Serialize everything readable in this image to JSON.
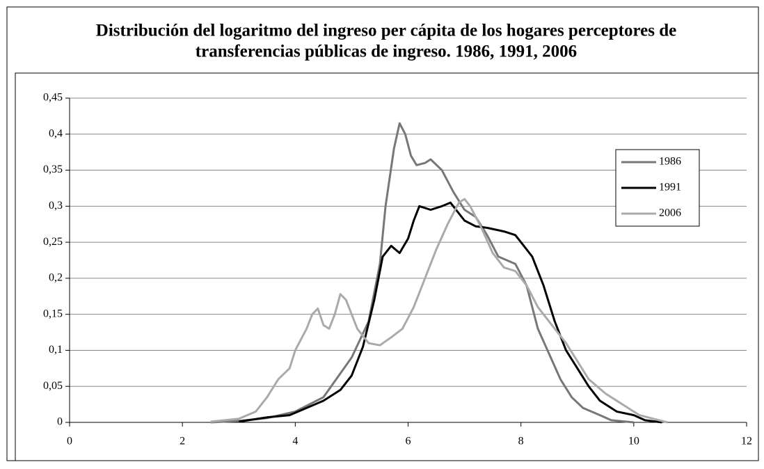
{
  "chart_data": {
    "type": "line",
    "title": [
      "Distribución del logaritmo del ingreso per cápita de los hogares perceptores de",
      "transferencias públicas de ingreso. 1986, 1991, 2006"
    ],
    "xlim": [
      0,
      12
    ],
    "xticks": [
      0,
      2,
      4,
      6,
      8,
      10,
      12
    ],
    "ylim": [
      0,
      0.45
    ],
    "yticks": [
      {
        "value": 0,
        "label": "0"
      },
      {
        "value": 0.05,
        "label": "0,05"
      },
      {
        "value": 0.1,
        "label": "0,1"
      },
      {
        "value": 0.15,
        "label": "0,15"
      },
      {
        "value": 0.2,
        "label": "0,2"
      },
      {
        "value": 0.25,
        "label": "0,25"
      },
      {
        "value": 0.3,
        "label": "0,3"
      },
      {
        "value": 0.35,
        "label": "0,35"
      },
      {
        "value": 0.4,
        "label": "0,4"
      },
      {
        "value": 0.45,
        "label": "0,45"
      }
    ],
    "grid": true,
    "legend": "right",
    "series": [
      {
        "name": "1986",
        "color": "#777777",
        "x": [
          2.5,
          3.0,
          3.5,
          4.0,
          4.5,
          5.0,
          5.3,
          5.5,
          5.6,
          5.75,
          5.85,
          5.95,
          6.05,
          6.15,
          6.3,
          6.4,
          6.6,
          6.8,
          7.0,
          7.2,
          7.4,
          7.6,
          7.9,
          8.1,
          8.3,
          8.5,
          8.7,
          8.9,
          9.1,
          9.4,
          9.6,
          10.0
        ],
        "values": [
          0,
          0.002,
          0.006,
          0.015,
          0.035,
          0.09,
          0.14,
          0.22,
          0.3,
          0.38,
          0.415,
          0.4,
          0.37,
          0.357,
          0.36,
          0.365,
          0.35,
          0.32,
          0.295,
          0.285,
          0.26,
          0.23,
          0.22,
          0.19,
          0.13,
          0.095,
          0.06,
          0.035,
          0.02,
          0.01,
          0.003,
          0
        ]
      },
      {
        "name": "1991",
        "color": "#000000",
        "x": [
          3.0,
          3.5,
          3.9,
          4.2,
          4.5,
          4.8,
          5.0,
          5.2,
          5.4,
          5.55,
          5.7,
          5.85,
          6.0,
          6.1,
          6.2,
          6.4,
          6.6,
          6.75,
          6.9,
          7.0,
          7.2,
          7.4,
          7.7,
          7.9,
          8.0,
          8.2,
          8.4,
          8.6,
          8.8,
          9.0,
          9.2,
          9.4,
          9.7,
          10.0,
          10.2,
          10.5
        ],
        "values": [
          0.001,
          0.007,
          0.01,
          0.02,
          0.03,
          0.045,
          0.065,
          0.105,
          0.17,
          0.23,
          0.245,
          0.235,
          0.255,
          0.28,
          0.3,
          0.295,
          0.3,
          0.305,
          0.29,
          0.28,
          0.272,
          0.27,
          0.265,
          0.26,
          0.25,
          0.23,
          0.19,
          0.14,
          0.1,
          0.075,
          0.05,
          0.03,
          0.015,
          0.01,
          0.003,
          0
        ]
      },
      {
        "name": "2006",
        "color": "#aaaaaa",
        "x": [
          2.5,
          3.0,
          3.3,
          3.5,
          3.7,
          3.9,
          4.0,
          4.2,
          4.3,
          4.4,
          4.5,
          4.6,
          4.7,
          4.8,
          4.9,
          5.1,
          5.3,
          5.5,
          5.7,
          5.9,
          6.1,
          6.3,
          6.5,
          6.7,
          6.9,
          7.0,
          7.1,
          7.3,
          7.5,
          7.7,
          7.9,
          8.1,
          8.3,
          8.6,
          8.8,
          9.0,
          9.2,
          9.5,
          9.8,
          10.1,
          10.4,
          10.6
        ],
        "values": [
          0.001,
          0.005,
          0.015,
          0.035,
          0.06,
          0.075,
          0.1,
          0.13,
          0.15,
          0.158,
          0.135,
          0.13,
          0.15,
          0.178,
          0.17,
          0.13,
          0.11,
          0.107,
          0.118,
          0.13,
          0.16,
          0.2,
          0.24,
          0.275,
          0.305,
          0.31,
          0.3,
          0.27,
          0.235,
          0.215,
          0.21,
          0.19,
          0.16,
          0.13,
          0.11,
          0.085,
          0.06,
          0.04,
          0.025,
          0.01,
          0.004,
          0
        ]
      }
    ]
  }
}
